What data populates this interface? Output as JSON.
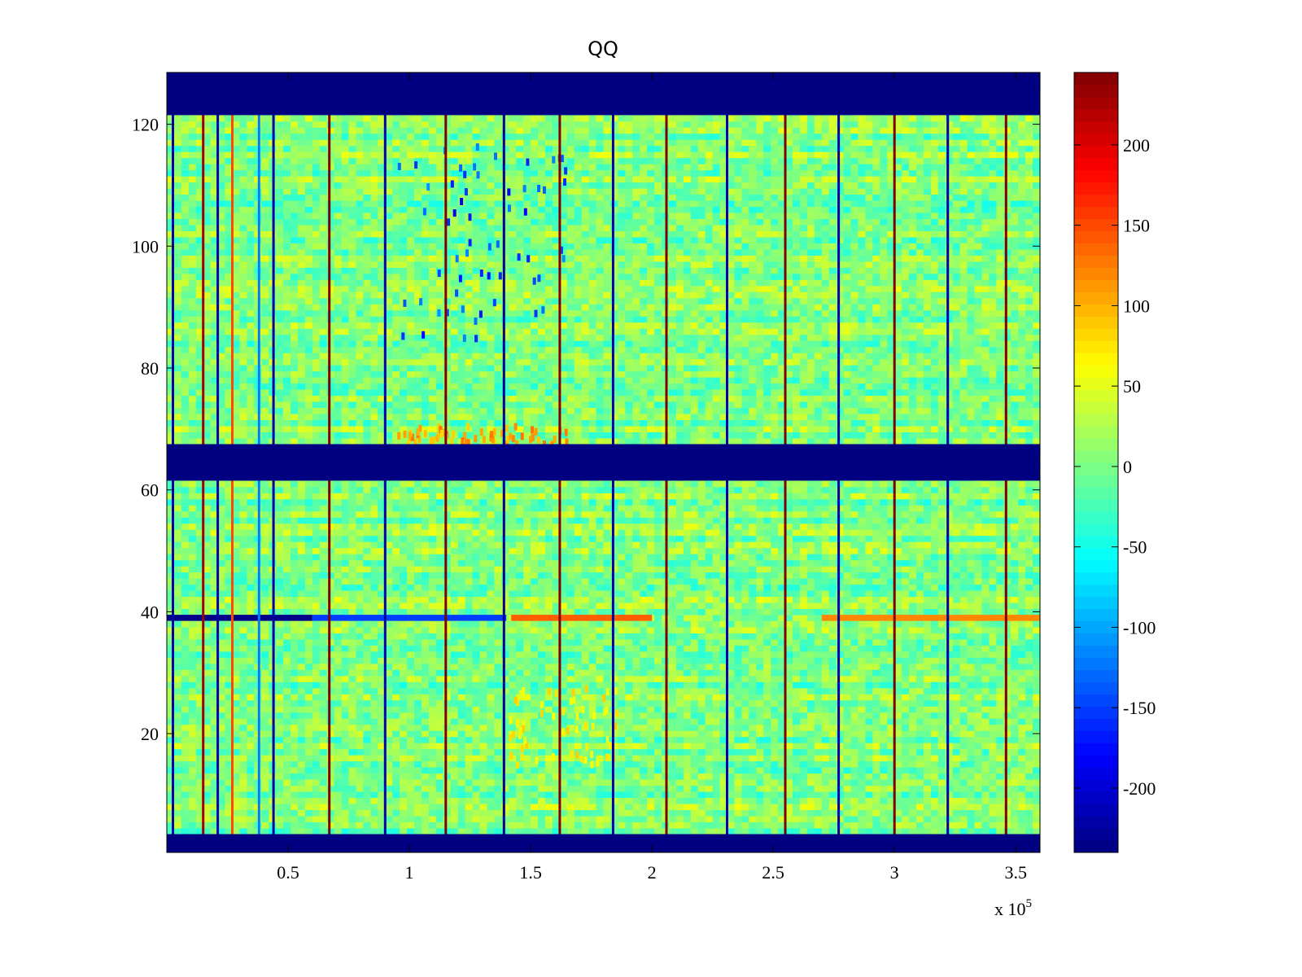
{
  "chart_data": {
    "type": "heatmap",
    "title": "QQ",
    "xlabel": "",
    "ylabel": "",
    "x_range": [
      0,
      360000
    ],
    "y_range": [
      0.5,
      128.5
    ],
    "x_ticks": [
      50000,
      100000,
      150000,
      200000,
      250000,
      300000,
      350000
    ],
    "x_tick_labels": [
      "0.5",
      "1",
      "1.5",
      "2",
      "2.5",
      "3",
      "3.5"
    ],
    "x_multiplier_text": "x 10",
    "x_multiplier_exponent": "5",
    "y_ticks": [
      20,
      40,
      60,
      80,
      100,
      120
    ],
    "y_tick_labels": [
      "20",
      "40",
      "60",
      "80",
      "100",
      "120"
    ],
    "colormap": "jet",
    "clim": [
      -240,
      245
    ],
    "colorbar_ticks": [
      200,
      150,
      100,
      50,
      0,
      -50,
      -100,
      -150,
      -200
    ],
    "colorbar_tick_labels": [
      "200",
      "150",
      "100",
      "50",
      "0",
      "-50",
      "-100",
      "-150",
      "-200"
    ],
    "background_value": 5,
    "blank_row_bands": [
      {
        "rows": [
          121.5,
          128.5
        ],
        "value": -240
      },
      {
        "rows": [
          61.5,
          67.5
        ],
        "value": -240
      },
      {
        "rows": [
          0.5,
          3.5
        ],
        "value": -240
      }
    ],
    "vertical_stripes": [
      {
        "x": 2500,
        "value": -220
      },
      {
        "x": 15000,
        "value": 230
      },
      {
        "x": 21000,
        "value": -220
      },
      {
        "x": 27000,
        "value": 150
      },
      {
        "x": 38000,
        "value": -120
      },
      {
        "x": 44000,
        "value": -220
      },
      {
        "x": 67000,
        "value": 245
      },
      {
        "x": 90000,
        "value": -220
      },
      {
        "x": 115000,
        "value": 245
      },
      {
        "x": 139000,
        "value": -230
      },
      {
        "x": 162000,
        "value": 245
      },
      {
        "x": 184000,
        "value": -220
      },
      {
        "x": 206000,
        "value": 245
      },
      {
        "x": 231000,
        "value": -220
      },
      {
        "x": 255000,
        "value": 245
      },
      {
        "x": 277000,
        "value": -220
      },
      {
        "x": 300000,
        "value": 245
      },
      {
        "x": 322000,
        "value": -220
      },
      {
        "x": 346000,
        "value": 245
      }
    ],
    "horizontal_features": [
      {
        "row": 39,
        "x_range": [
          0,
          60000
        ],
        "value": -235
      },
      {
        "row": 39,
        "x_range": [
          60000,
          140000
        ],
        "value": -150
      },
      {
        "row": 39,
        "x_range": [
          142000,
          200000
        ],
        "value": 140
      },
      {
        "row": 39,
        "x_range": [
          270000,
          360000
        ],
        "value": 120
      }
    ],
    "blob_regions": [
      {
        "x_range": [
          95000,
          165000
        ],
        "rows": [
          85,
          118
        ],
        "value": -180
      },
      {
        "x_range": [
          95000,
          165000
        ],
        "rows": [
          68,
          71
        ],
        "value": 130
      },
      {
        "x_range": [
          140000,
          185000
        ],
        "rows": [
          15,
          28
        ],
        "value": 90
      }
    ]
  }
}
